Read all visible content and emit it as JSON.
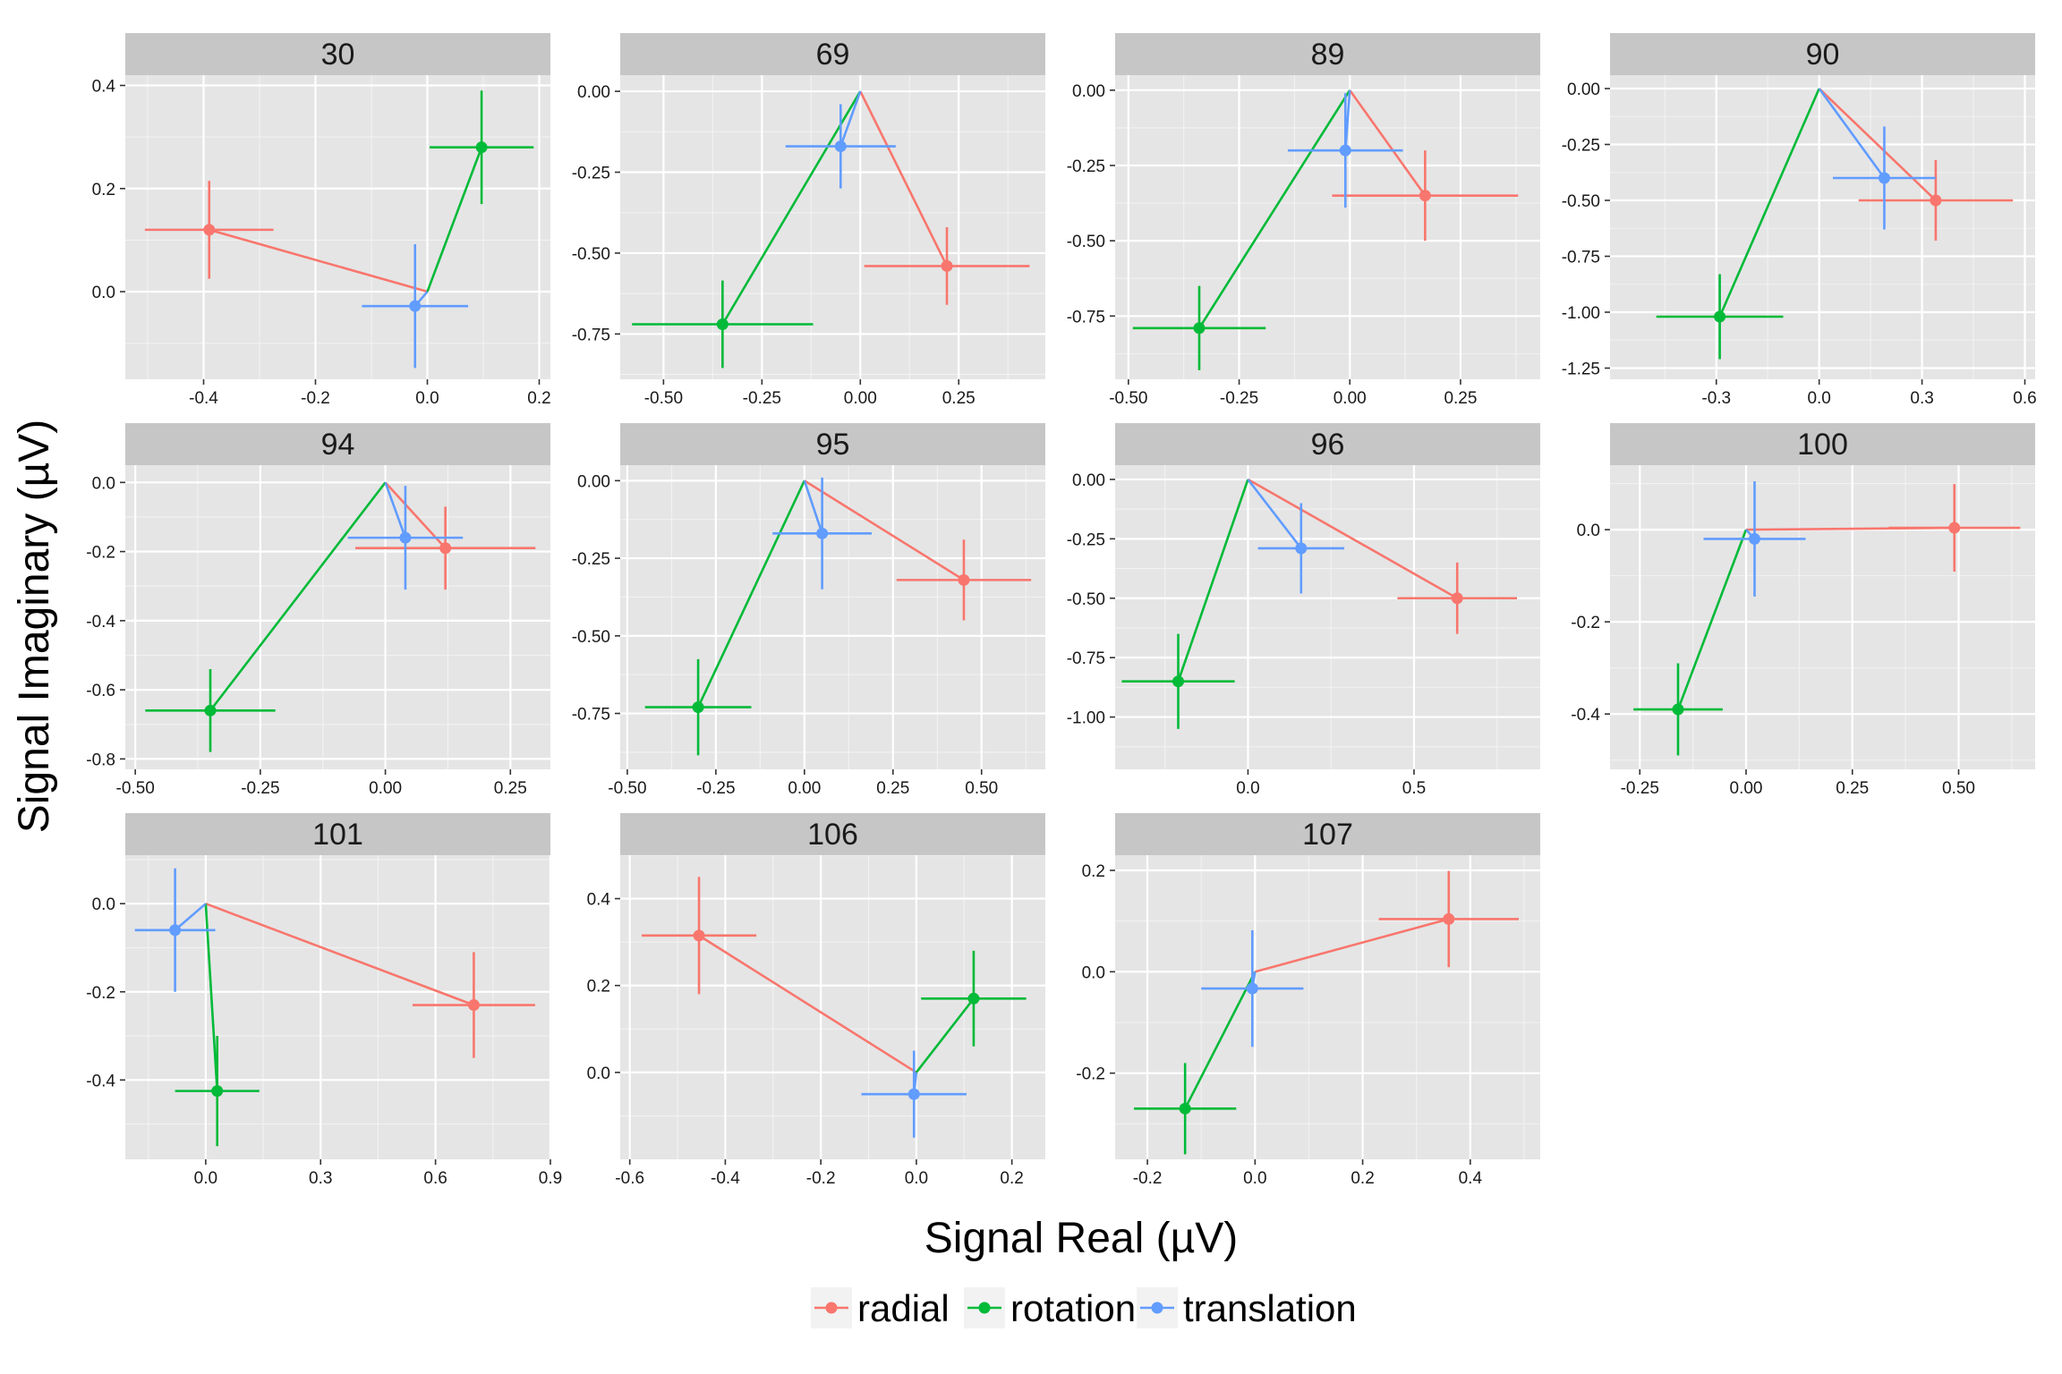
{
  "chart_data": {
    "type": "scatter",
    "xlabel": "Signal Real (µV)",
    "ylabel": "Signal Imaginary (µV)",
    "colors": {
      "radial": "#F8766D",
      "rotation": "#00BA38",
      "translation": "#619CFF"
    },
    "legend": {
      "position": "bottom",
      "entries": [
        "radial",
        "rotation",
        "translation"
      ]
    },
    "grid": true,
    "panels": [
      {
        "title": "30",
        "xlim": [
          -0.54,
          0.22
        ],
        "ylim": [
          -0.17,
          0.42
        ],
        "xticks": [
          -0.4,
          -0.2,
          0.0,
          0.2
        ],
        "xtick_labels": [
          "-0.4",
          "-0.2",
          "0.0",
          "0.2"
        ],
        "yticks": [
          0.0,
          0.2,
          0.4
        ],
        "ytick_labels": [
          "0.0",
          "0.2",
          "0.4"
        ],
        "series": [
          {
            "name": "radial",
            "x": -0.39,
            "y": 0.12,
            "xerr": 0.115,
            "yerr": 0.095
          },
          {
            "name": "rotation",
            "x": 0.097,
            "y": 0.28,
            "xerr": 0.093,
            "yerr": 0.11
          },
          {
            "name": "translation",
            "x": -0.022,
            "y": -0.028,
            "xerr": 0.095,
            "yerr": 0.12
          }
        ]
      },
      {
        "title": "69",
        "xlim": [
          -0.61,
          0.47
        ],
        "ylim": [
          -0.89,
          0.05
        ],
        "xticks": [
          -0.5,
          -0.25,
          0.0,
          0.25
        ],
        "xtick_labels": [
          "-0.50",
          "-0.25",
          "0.00",
          "0.25"
        ],
        "yticks": [
          0.0,
          -0.25,
          -0.5,
          -0.75
        ],
        "ytick_labels": [
          "0.00",
          "-0.25",
          "-0.50",
          "-0.75"
        ],
        "series": [
          {
            "name": "radial",
            "x": 0.22,
            "y": -0.54,
            "xerr": 0.21,
            "yerr": 0.12
          },
          {
            "name": "rotation",
            "x": -0.35,
            "y": -0.72,
            "xerr": 0.23,
            "yerr": 0.135
          },
          {
            "name": "translation",
            "x": -0.05,
            "y": -0.17,
            "xerr": 0.14,
            "yerr": 0.13
          }
        ]
      },
      {
        "title": "89",
        "xlim": [
          -0.53,
          0.43
        ],
        "ylim": [
          -0.96,
          0.05
        ],
        "xticks": [
          -0.5,
          -0.25,
          0.0,
          0.25
        ],
        "xtick_labels": [
          "-0.50",
          "-0.25",
          "0.00",
          "0.25"
        ],
        "yticks": [
          0.0,
          -0.25,
          -0.5,
          -0.75
        ],
        "ytick_labels": [
          "0.00",
          "-0.25",
          "-0.50",
          "-0.75"
        ],
        "series": [
          {
            "name": "radial",
            "x": 0.17,
            "y": -0.35,
            "xerr": 0.21,
            "yerr": 0.15
          },
          {
            "name": "rotation",
            "x": -0.34,
            "y": -0.79,
            "xerr": 0.15,
            "yerr": 0.14
          },
          {
            "name": "translation",
            "x": -0.01,
            "y": -0.2,
            "xerr": 0.13,
            "yerr": 0.19
          }
        ]
      },
      {
        "title": "90",
        "xlim": [
          -0.61,
          0.63
        ],
        "ylim": [
          -1.3,
          0.06
        ],
        "xticks": [
          -0.3,
          0.0,
          0.3,
          0.6
        ],
        "xtick_labels": [
          "-0.3",
          "0.0",
          "0.3",
          "0.6"
        ],
        "yticks": [
          0.0,
          -0.25,
          -0.5,
          -0.75,
          -1.0,
          -1.25
        ],
        "ytick_labels": [
          "0.00",
          "-0.25",
          "-0.50",
          "-0.75",
          "-1.00",
          "-1.25"
        ],
        "series": [
          {
            "name": "radial",
            "x": 0.34,
            "y": -0.5,
            "xerr": 0.225,
            "yerr": 0.18
          },
          {
            "name": "rotation",
            "x": -0.29,
            "y": -1.02,
            "xerr": 0.185,
            "yerr": 0.19
          },
          {
            "name": "translation",
            "x": 0.19,
            "y": -0.4,
            "xerr": 0.15,
            "yerr": 0.23
          }
        ]
      },
      {
        "title": "94",
        "xlim": [
          -0.52,
          0.33
        ],
        "ylim": [
          -0.83,
          0.05
        ],
        "xticks": [
          -0.5,
          -0.25,
          0.0,
          0.25
        ],
        "xtick_labels": [
          "-0.50",
          "-0.25",
          "0.00",
          "0.25"
        ],
        "yticks": [
          0.0,
          -0.2,
          -0.4,
          -0.6,
          -0.8
        ],
        "ytick_labels": [
          "0.0",
          "-0.2",
          "-0.4",
          "-0.6",
          "-0.8"
        ],
        "series": [
          {
            "name": "radial",
            "x": 0.12,
            "y": -0.19,
            "xerr": 0.18,
            "yerr": 0.12
          },
          {
            "name": "rotation",
            "x": -0.35,
            "y": -0.66,
            "xerr": 0.13,
            "yerr": 0.12
          },
          {
            "name": "translation",
            "x": 0.04,
            "y": -0.16,
            "xerr": 0.115,
            "yerr": 0.15
          }
        ]
      },
      {
        "title": "95",
        "xlim": [
          -0.52,
          0.68
        ],
        "ylim": [
          -0.93,
          0.05
        ],
        "xticks": [
          -0.5,
          -0.25,
          0.0,
          0.25,
          0.5
        ],
        "xtick_labels": [
          "-0.50",
          "-0.25",
          "0.00",
          "0.25",
          "0.50"
        ],
        "yticks": [
          0.0,
          -0.25,
          -0.5,
          -0.75
        ],
        "ytick_labels": [
          "0.00",
          "-0.25",
          "-0.50",
          "-0.75"
        ],
        "series": [
          {
            "name": "radial",
            "x": 0.45,
            "y": -0.32,
            "xerr": 0.19,
            "yerr": 0.13
          },
          {
            "name": "rotation",
            "x": -0.3,
            "y": -0.73,
            "xerr": 0.15,
            "yerr": 0.155
          },
          {
            "name": "translation",
            "x": 0.05,
            "y": -0.17,
            "xerr": 0.14,
            "yerr": 0.18
          }
        ]
      },
      {
        "title": "96",
        "xlim": [
          -0.4,
          0.88
        ],
        "ylim": [
          -1.22,
          0.06
        ],
        "xticks": [
          0.0,
          0.5
        ],
        "xtick_labels": [
          "0.0",
          "0.5"
        ],
        "yticks": [
          0.0,
          -0.25,
          -0.5,
          -0.75,
          -1.0
        ],
        "ytick_labels": [
          "0.00",
          "-0.25",
          "-0.50",
          "-0.75",
          "-1.00"
        ],
        "series": [
          {
            "name": "radial",
            "x": 0.63,
            "y": -0.5,
            "xerr": 0.18,
            "yerr": 0.15
          },
          {
            "name": "rotation",
            "x": -0.21,
            "y": -0.85,
            "xerr": 0.17,
            "yerr": 0.2
          },
          {
            "name": "translation",
            "x": 0.16,
            "y": -0.29,
            "xerr": 0.13,
            "yerr": 0.19
          }
        ]
      },
      {
        "title": "100",
        "xlim": [
          -0.32,
          0.68
        ],
        "ylim": [
          -0.52,
          0.14
        ],
        "xticks": [
          -0.25,
          0.0,
          0.25,
          0.5
        ],
        "xtick_labels": [
          "-0.25",
          "0.00",
          "0.25",
          "0.50"
        ],
        "yticks": [
          0.0,
          -0.2,
          -0.4
        ],
        "ytick_labels": [
          "0.0",
          "-0.2",
          "-0.4"
        ],
        "series": [
          {
            "name": "radial",
            "x": 0.49,
            "y": 0.004,
            "xerr": 0.155,
            "yerr": 0.095
          },
          {
            "name": "rotation",
            "x": -0.16,
            "y": -0.39,
            "xerr": 0.105,
            "yerr": 0.1
          },
          {
            "name": "translation",
            "x": 0.02,
            "y": -0.02,
            "xerr": 0.12,
            "yerr": 0.125
          }
        ]
      },
      {
        "title": "101",
        "xlim": [
          -0.21,
          0.9
        ],
        "ylim": [
          -0.58,
          0.11
        ],
        "xticks": [
          0.0,
          0.3,
          0.6,
          0.9
        ],
        "xtick_labels": [
          "0.0",
          "0.3",
          "0.6",
          "0.9"
        ],
        "yticks": [
          0.0,
          -0.2,
          -0.4
        ],
        "ytick_labels": [
          "0.0",
          "-0.2",
          "-0.4"
        ],
        "series": [
          {
            "name": "radial",
            "x": 0.7,
            "y": -0.23,
            "xerr": 0.16,
            "yerr": 0.12
          },
          {
            "name": "rotation",
            "x": 0.03,
            "y": -0.425,
            "xerr": 0.11,
            "yerr": 0.125
          },
          {
            "name": "translation",
            "x": -0.08,
            "y": -0.06,
            "xerr": 0.105,
            "yerr": 0.14
          }
        ]
      },
      {
        "title": "106",
        "xlim": [
          -0.62,
          0.27
        ],
        "ylim": [
          -0.2,
          0.5
        ],
        "xticks": [
          -0.6,
          -0.4,
          -0.2,
          0.0,
          0.2
        ],
        "xtick_labels": [
          "-0.6",
          "-0.4",
          "-0.2",
          "0.0",
          "0.2"
        ],
        "yticks": [
          0.0,
          0.2,
          0.4
        ],
        "ytick_labels": [
          "0.0",
          "0.2",
          "0.4"
        ],
        "series": [
          {
            "name": "radial",
            "x": -0.455,
            "y": 0.315,
            "xerr": 0.12,
            "yerr": 0.135
          },
          {
            "name": "rotation",
            "x": 0.12,
            "y": 0.17,
            "xerr": 0.11,
            "yerr": 0.11
          },
          {
            "name": "translation",
            "x": -0.005,
            "y": -0.05,
            "xerr": 0.11,
            "yerr": 0.1
          }
        ]
      },
      {
        "title": "107",
        "xlim": [
          -0.26,
          0.53
        ],
        "ylim": [
          -0.37,
          0.23
        ],
        "xticks": [
          -0.2,
          0.0,
          0.2,
          0.4
        ],
        "xtick_labels": [
          "-0.2",
          "0.0",
          "0.2",
          "0.4"
        ],
        "yticks": [
          0.2,
          0.0,
          -0.2
        ],
        "ytick_labels": [
          "0.2",
          "0.0",
          "-0.2"
        ],
        "series": [
          {
            "name": "radial",
            "x": 0.36,
            "y": 0.104,
            "xerr": 0.13,
            "yerr": 0.095
          },
          {
            "name": "rotation",
            "x": -0.13,
            "y": -0.27,
            "xerr": 0.095,
            "yerr": 0.09
          },
          {
            "name": "translation",
            "x": -0.005,
            "y": -0.033,
            "xerr": 0.095,
            "yerr": 0.115
          }
        ]
      }
    ]
  }
}
